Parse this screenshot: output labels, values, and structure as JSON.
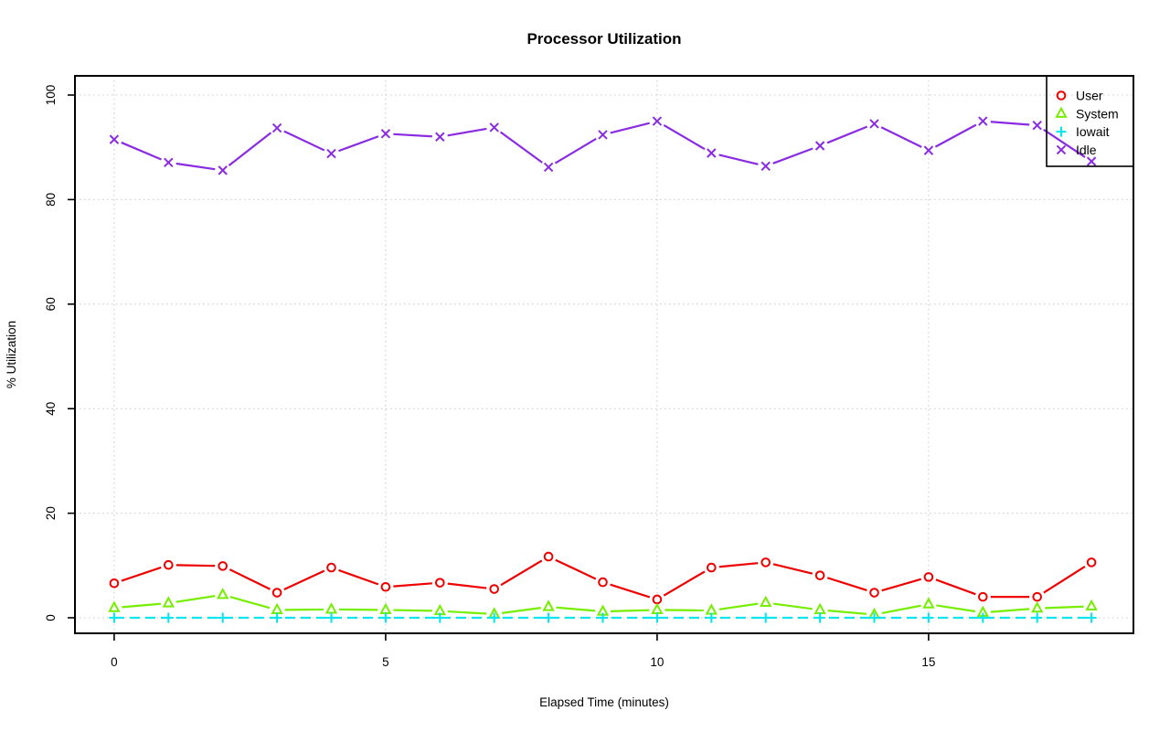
{
  "chart_data": {
    "type": "line",
    "title": "Processor Utilization",
    "xlabel": "Elapsed Time (minutes)",
    "ylabel": "% Utilization",
    "x": [
      0,
      1,
      2,
      3,
      4,
      5,
      6,
      7,
      8,
      9,
      10,
      11,
      12,
      13,
      14,
      15,
      16,
      17,
      18
    ],
    "series": [
      {
        "name": "User",
        "color": "#EE0000",
        "marker": "circle",
        "line_style": "solid",
        "values": [
          6.6,
          10.1,
          9.9,
          4.8,
          9.6,
          5.9,
          6.7,
          5.5,
          11.7,
          6.8,
          3.5,
          9.6,
          10.6,
          8.1,
          4.8,
          7.8,
          4.0,
          4.0,
          10.6
        ]
      },
      {
        "name": "System",
        "color": "#76EE00",
        "marker": "triangle",
        "line_style": "solid",
        "values": [
          1.9,
          2.8,
          4.4,
          1.5,
          1.6,
          1.5,
          1.3,
          0.7,
          2.1,
          1.2,
          1.5,
          1.4,
          2.9,
          1.5,
          0.6,
          2.6,
          1.0,
          1.8,
          2.2
        ]
      },
      {
        "name": "Iowait",
        "color": "#00E5EE",
        "marker": "plus",
        "line_style": "dashed",
        "values": [
          0,
          0,
          0,
          0,
          0,
          0,
          0,
          0,
          0,
          0,
          0,
          0,
          0,
          0,
          0,
          0,
          0,
          0,
          0
        ]
      },
      {
        "name": "Idle",
        "color": "#8A2BE2",
        "marker": "x",
        "line_style": "solid",
        "values": [
          91.5,
          87.1,
          85.6,
          93.7,
          88.8,
          92.6,
          92.0,
          93.8,
          86.2,
          92.4,
          95.0,
          88.9,
          86.4,
          90.3,
          94.5,
          89.4,
          95.0,
          94.2,
          87.3
        ]
      }
    ],
    "xticks": [
      0,
      5,
      10,
      15
    ],
    "yticks": [
      0,
      20,
      40,
      60,
      80,
      100
    ],
    "xlim": [
      -0.7,
      18.7
    ],
    "ylim": [
      -3,
      103.5
    ],
    "grid": "dotted",
    "grid_color": "#c9c9c9",
    "legend_position": "top-right",
    "legend_entries": [
      "User",
      "System",
      "Iowait",
      "Idle"
    ]
  }
}
